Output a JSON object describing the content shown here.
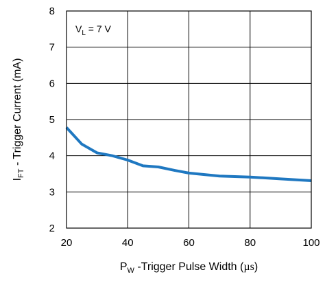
{
  "chart_data": {
    "type": "line",
    "xlabel": {
      "main": "P",
      "sub": "W",
      "rest": " -Trigger Pulse Width (",
      "unit": "µs",
      "close": ")"
    },
    "ylabel": {
      "main": "I",
      "sub": "FT",
      "rest": " - Trigger Current (mA)"
    },
    "xlim": [
      20,
      100
    ],
    "ylim": [
      2,
      8
    ],
    "xticks": [
      20,
      40,
      60,
      80,
      100
    ],
    "yticks": [
      2,
      3,
      4,
      5,
      6,
      7,
      8
    ],
    "grid": true,
    "annotation": {
      "main": "V",
      "sub": "L",
      "rest": " = 7 V"
    },
    "series": [
      {
        "color": "#1f78c1",
        "x": [
          20,
          25,
          30,
          35,
          40,
          45,
          50,
          55,
          60,
          70,
          80,
          90,
          100
        ],
        "y": [
          4.78,
          4.32,
          4.08,
          4.0,
          3.88,
          3.72,
          3.69,
          3.6,
          3.52,
          3.44,
          3.41,
          3.36,
          3.31
        ]
      }
    ]
  }
}
